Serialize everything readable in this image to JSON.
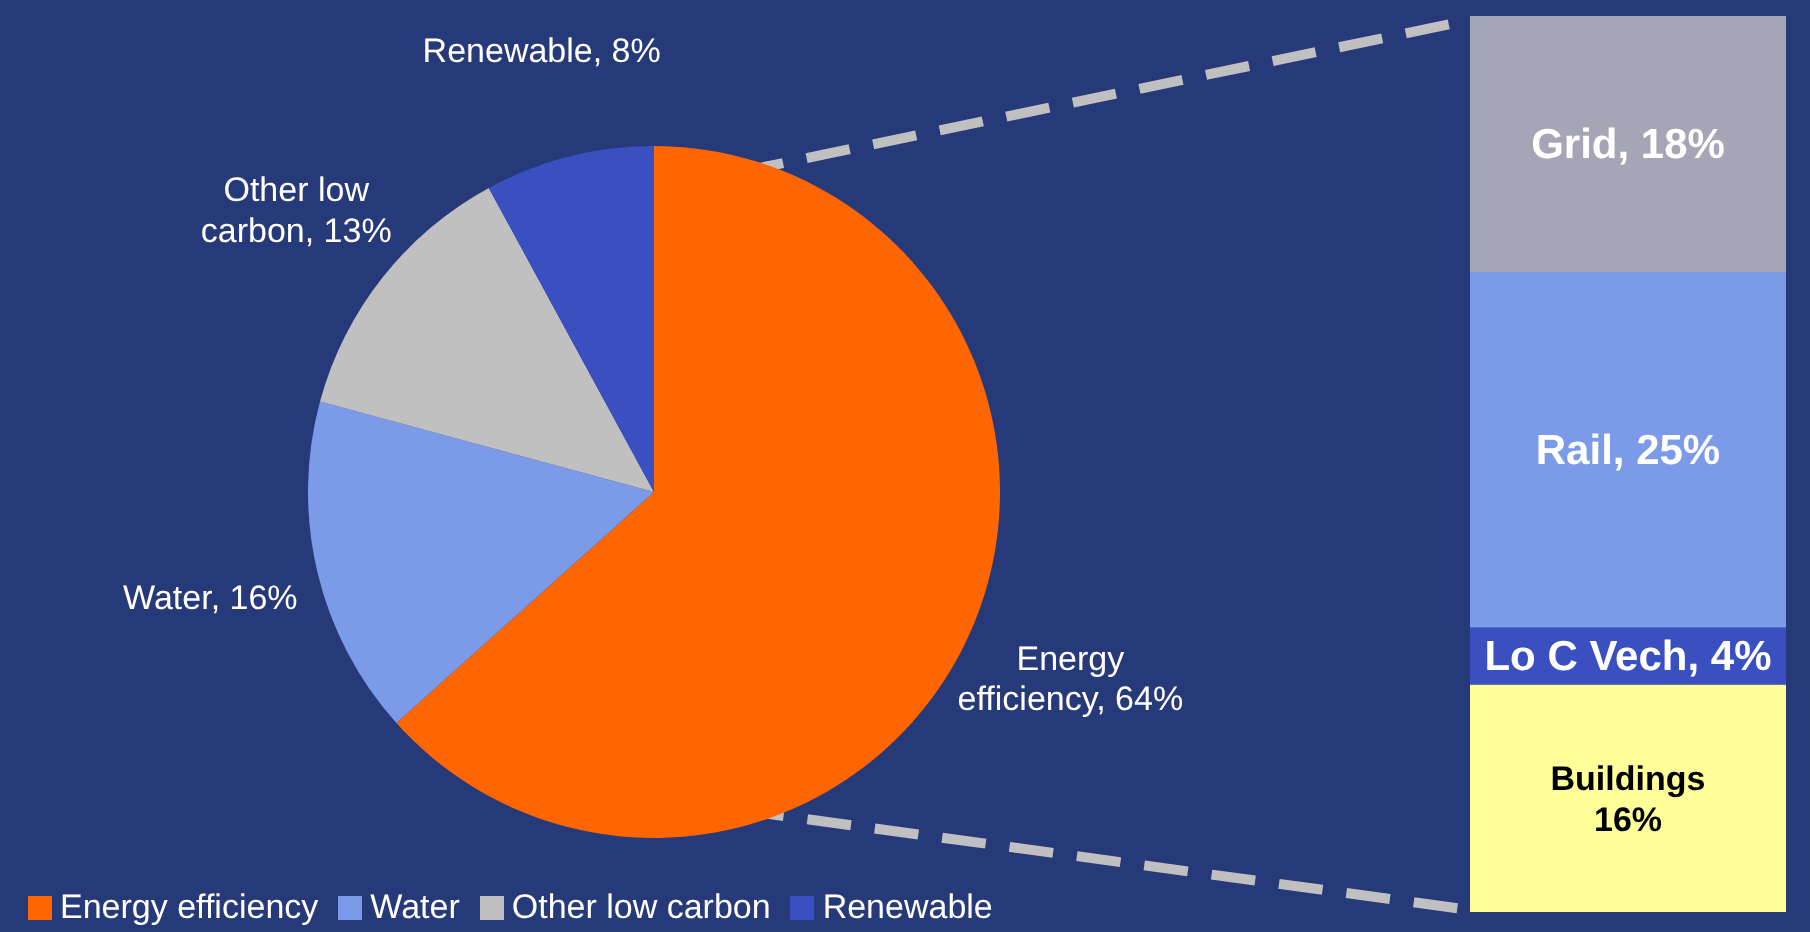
{
  "chart_data": [
    {
      "type": "pie",
      "categories": [
        "Energy efficiency",
        "Water",
        "Other low carbon",
        "Renewable"
      ],
      "values": [
        64,
        16,
        13,
        8
      ],
      "colors": [
        "#ff6600",
        "#7b9be8",
        "#c0c0c0",
        "#3a4fc0"
      ],
      "value_labels": [
        "Energy\nefficiency, 64%",
        "Water, 16%",
        "Other low\ncarbon, 13%",
        "Renewable, 8%"
      ],
      "legend": "bottom"
    },
    {
      "type": "bar",
      "stacked": true,
      "categories": [
        null
      ],
      "series": [
        {
          "color": "#ffff99",
          "values": [
            16
          ],
          "value_labels": [
            "Buildings\n16%"
          ]
        },
        {
          "color": "#3a4fc0",
          "values": [
            4
          ],
          "value_labels": [
            "Lo C Vech, 4%"
          ]
        },
        {
          "color": "#7b9be8",
          "values": [
            25
          ],
          "value_labels": [
            "Rail, 25%"
          ]
        },
        {
          "color": "#a5a5b5",
          "values": [
            18
          ],
          "value_labels": [
            "Grid, 18%"
          ]
        }
      ]
    }
  ]
}
